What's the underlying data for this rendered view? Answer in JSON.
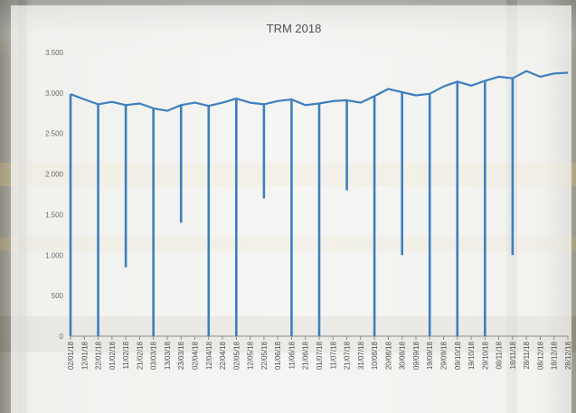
{
  "chart_data": {
    "type": "line",
    "title": "TRM 2018",
    "xlabel": "",
    "ylabel": "",
    "ylim": [
      0,
      3500
    ],
    "yticks": [
      0,
      500,
      1000,
      1500,
      2000,
      2500,
      3000,
      3500
    ],
    "ytick_labels": [
      "0",
      "500",
      "1.000",
      "1.500",
      "2.000",
      "2.500",
      "3.000",
      "3.500"
    ],
    "grid": false,
    "legend": "none",
    "series_color": "#3d7fc0",
    "x": [
      "02/01/18",
      "12/01/18",
      "22/01/18",
      "01/02/18",
      "11/02/18",
      "21/02/18",
      "03/03/18",
      "13/03/18",
      "23/03/18",
      "02/04/18",
      "12/04/18",
      "22/04/18",
      "02/05/18",
      "12/05/18",
      "22/05/18",
      "01/06/18",
      "11/06/18",
      "21/06/18",
      "01/07/18",
      "11/07/18",
      "21/07/18",
      "31/07/18",
      "10/08/18",
      "20/08/18",
      "30/08/18",
      "09/09/18",
      "19/09/18",
      "29/09/18",
      "09/10/18",
      "19/10/18",
      "29/10/18",
      "08/11/18",
      "18/11/18",
      "28/11/18",
      "08/12/18",
      "18/12/18",
      "28/12/18"
    ],
    "values": [
      2985,
      2920,
      2860,
      2890,
      2850,
      2870,
      2810,
      2780,
      2850,
      2880,
      2840,
      2880,
      2930,
      2880,
      2860,
      2900,
      2920,
      2850,
      2870,
      2900,
      2910,
      2880,
      2960,
      3050,
      3010,
      2970,
      2990,
      3080,
      3140,
      3090,
      3150,
      3200,
      3180,
      3270,
      3200,
      3240,
      3249
    ],
    "dips": [
      {
        "date": "02/01/18",
        "value": 0
      },
      {
        "date": "22/01/18",
        "value": 0
      },
      {
        "date": "11/02/18",
        "value": 850
      },
      {
        "date": "03/03/18",
        "value": 0
      },
      {
        "date": "23/03/18",
        "value": 1400
      },
      {
        "date": "12/04/18",
        "value": 0
      },
      {
        "date": "02/05/18",
        "value": 0
      },
      {
        "date": "22/05/18",
        "value": 1700
      },
      {
        "date": "11/06/18",
        "value": 0
      },
      {
        "date": "01/07/18",
        "value": 0
      },
      {
        "date": "21/07/18",
        "value": 1800
      },
      {
        "date": "10/08/18",
        "value": 0
      },
      {
        "date": "30/08/18",
        "value": 1000
      },
      {
        "date": "19/09/18",
        "value": 0
      },
      {
        "date": "09/10/18",
        "value": 0
      },
      {
        "date": "29/10/18",
        "value": 0
      },
      {
        "date": "18/11/18",
        "value": 1000
      }
    ]
  }
}
